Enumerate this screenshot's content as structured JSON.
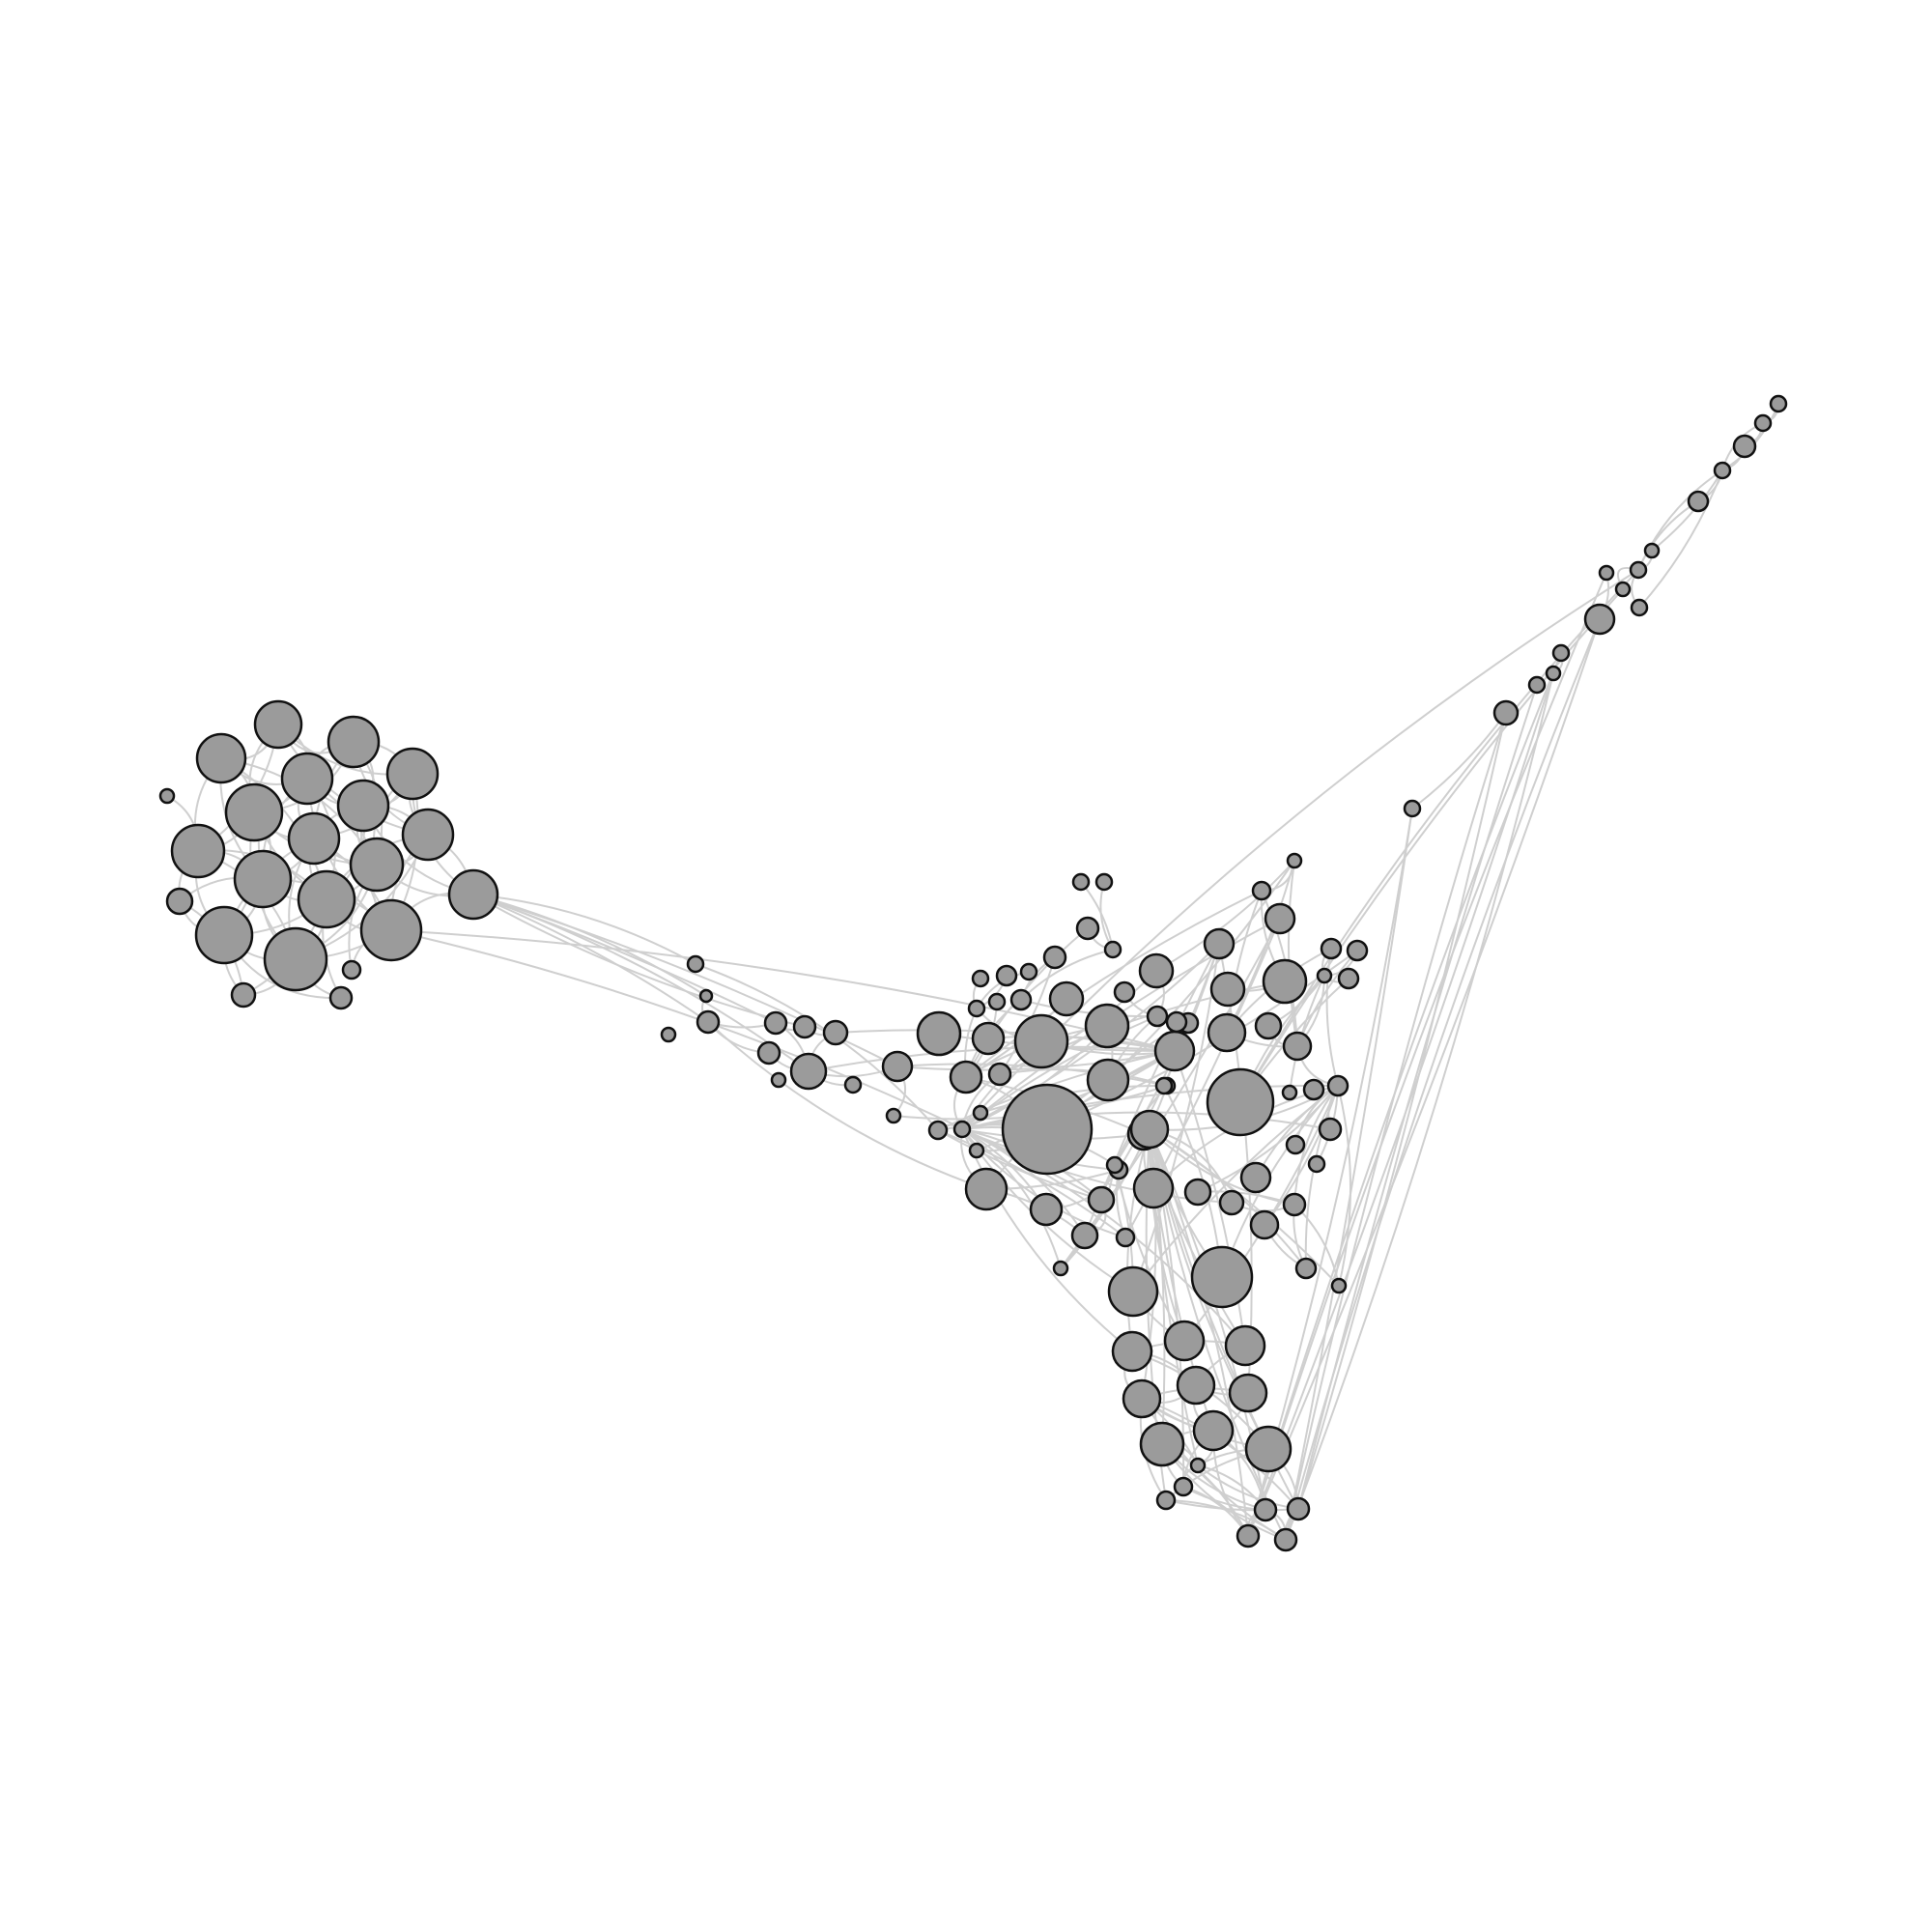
{
  "diagram": {
    "type": "network-graph",
    "labels": "none",
    "colors": {
      "background": "#ffffff",
      "node_fill": "#9b9b9b",
      "node_stroke": "#111111",
      "edge": "#cfcfcf"
    }
  }
}
